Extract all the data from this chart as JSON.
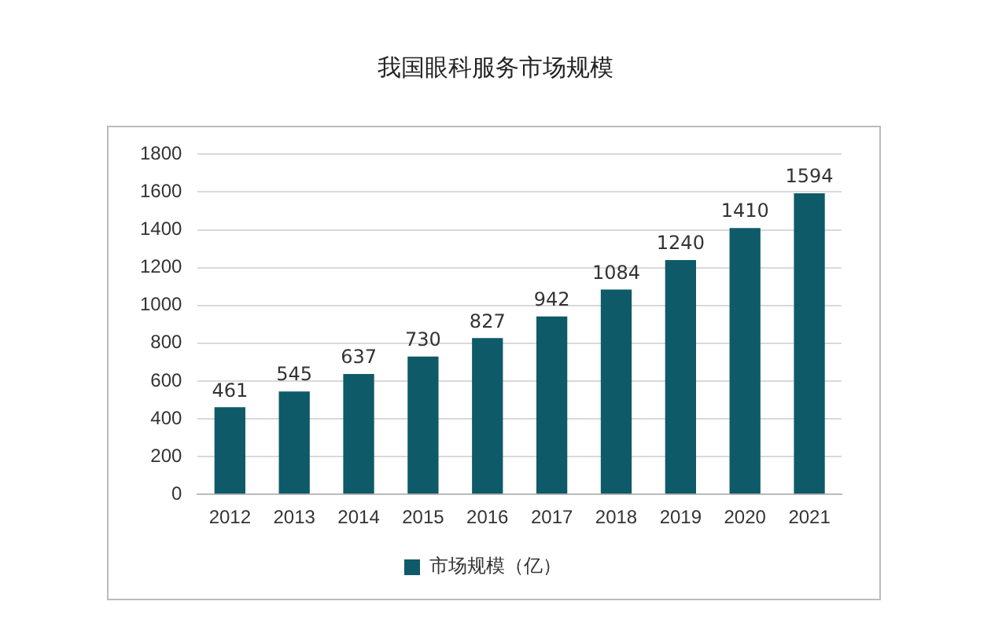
{
  "chart_data": {
    "type": "bar",
    "title": "我国眼科服务市场规模",
    "categories": [
      "2012",
      "2013",
      "2014",
      "2015",
      "2016",
      "2017",
      "2018",
      "2019",
      "2020",
      "2021"
    ],
    "series": [
      {
        "name": "市场规模（亿）",
        "color": "#0e5a69",
        "values": [
          461,
          545,
          637,
          730,
          827,
          942,
          1084,
          1240,
          1410,
          1594
        ]
      }
    ],
    "ylim": [
      0,
      1800
    ],
    "yticks": [
      0,
      200,
      400,
      600,
      800,
      1000,
      1200,
      1400,
      1600,
      1800
    ],
    "grid": "y",
    "legend": "bottom",
    "data_labels": true
  }
}
